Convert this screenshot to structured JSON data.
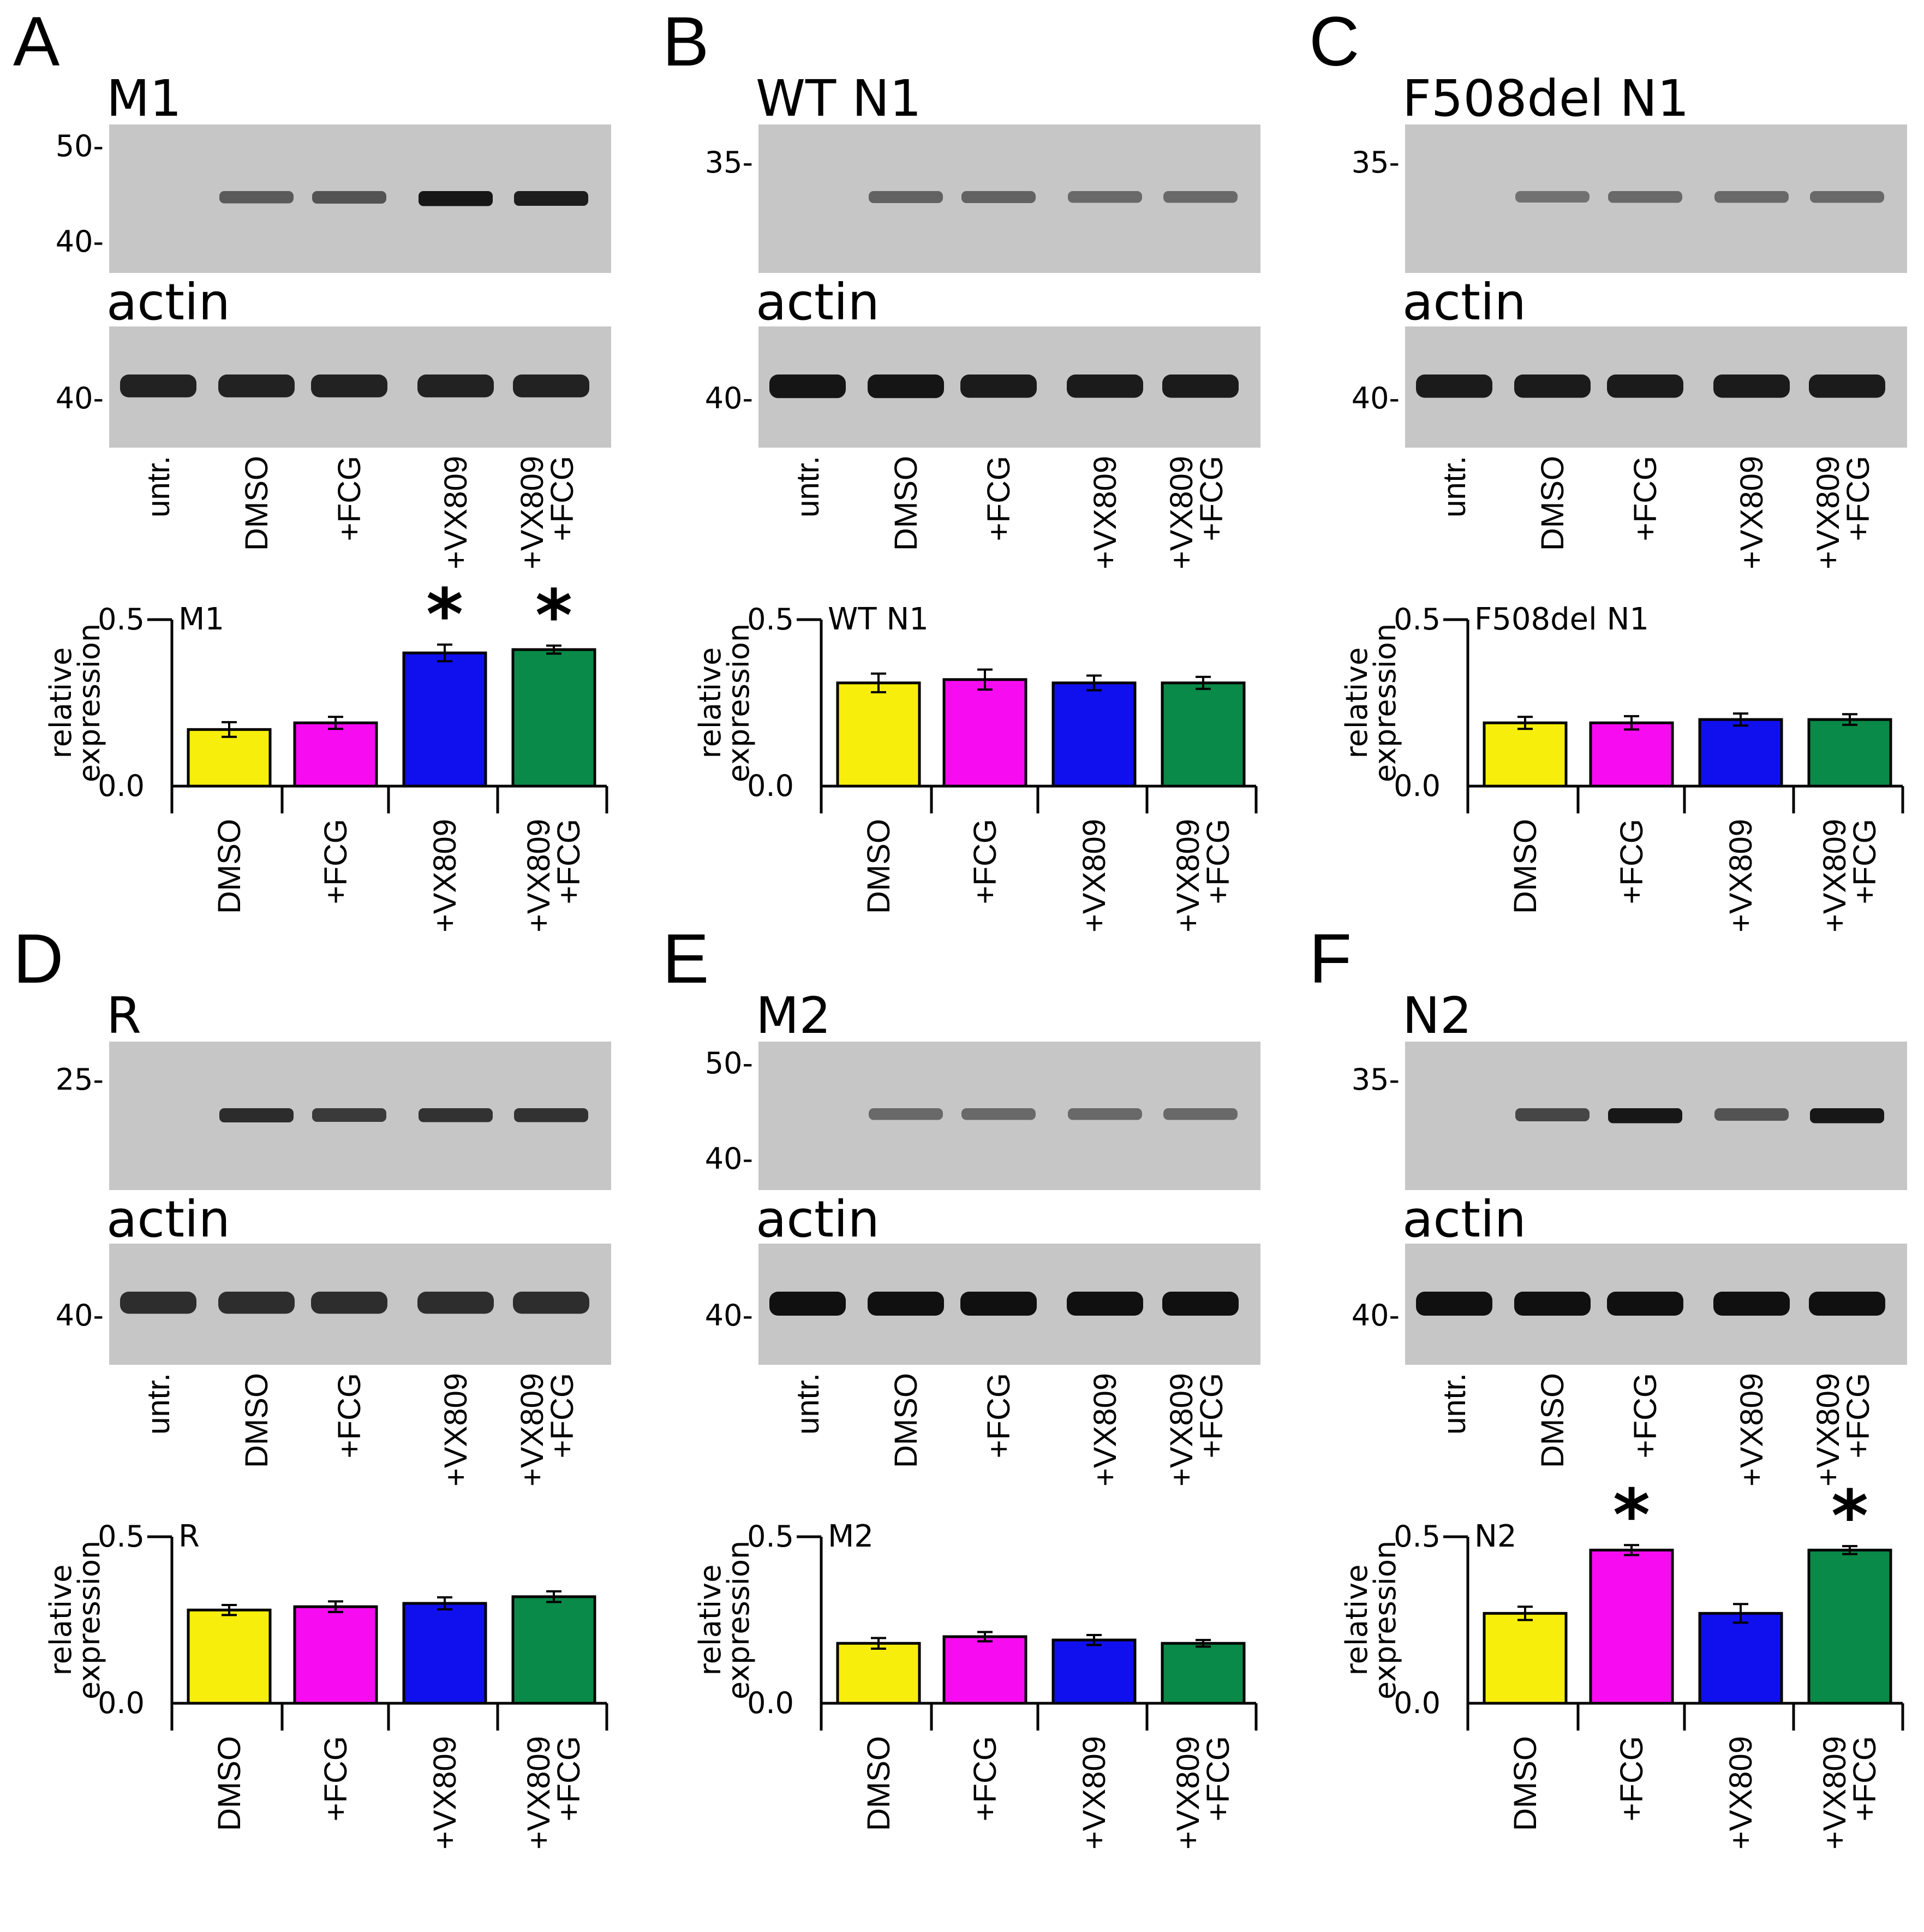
{
  "colors": {
    "DMSO": "#f7ee0c",
    "+FCG": "#f70cf1",
    "+VX809": "#1010ee",
    "+VX809 +FCG": "#0a8a48",
    "gel_bg": "#c6c6c6",
    "band": "#101010"
  },
  "lane_labels": [
    "untr.",
    "DMSO",
    "+FCG",
    "+VX809",
    [
      "+VX809",
      "+FCG"
    ]
  ],
  "chart_categories": [
    "DMSO",
    "+FCG",
    "+VX809",
    [
      "+VX809",
      "+FCG"
    ]
  ],
  "y_axis_label": [
    "relative",
    "expression"
  ],
  "blots": [
    {
      "letter": "A",
      "title": "M1",
      "title_actin": "actin",
      "mw_top": [
        "50-",
        "40-"
      ],
      "mw_actin": [
        "40-"
      ],
      "band_intensity": [
        0,
        0.45,
        0.5,
        0.95,
        0.9
      ],
      "actin_intensity": [
        0.85,
        0.85,
        0.85,
        0.85,
        0.85
      ]
    },
    {
      "letter": "B",
      "title": "WT N1",
      "title_actin": "actin",
      "mw_top": [
        "35-"
      ],
      "mw_actin": [
        "40-"
      ],
      "band_intensity": [
        0,
        0.4,
        0.4,
        0.35,
        0.35
      ],
      "actin_intensity": [
        0.95,
        0.95,
        0.9,
        0.9,
        0.9
      ]
    },
    {
      "letter": "C",
      "title": "F508del N1",
      "title_actin": "actin",
      "mw_top": [
        "35-"
      ],
      "mw_actin": [
        "40-"
      ],
      "band_intensity": [
        0,
        0.3,
        0.35,
        0.35,
        0.35
      ],
      "actin_intensity": [
        0.9,
        0.9,
        0.9,
        0.9,
        0.9
      ]
    },
    {
      "letter": "D",
      "title": "R",
      "title_actin": "actin",
      "mw_top": [
        "25-"
      ],
      "mw_actin": [
        "40-"
      ],
      "band_intensity": [
        0,
        0.8,
        0.7,
        0.75,
        0.75
      ],
      "actin_intensity": [
        0.75,
        0.75,
        0.75,
        0.75,
        0.75
      ]
    },
    {
      "letter": "E",
      "title": "M2",
      "title_actin": "actin",
      "mw_top": [
        "50-",
        "40-"
      ],
      "mw_actin": [
        "40-"
      ],
      "band_intensity": [
        0,
        0.35,
        0.35,
        0.35,
        0.35
      ],
      "actin_intensity": [
        1,
        1,
        1,
        1,
        1
      ]
    },
    {
      "letter": "F",
      "title": "N2",
      "title_actin": "actin",
      "mw_top": [
        "35-"
      ],
      "mw_actin": [
        "40-"
      ],
      "band_intensity": [
        0,
        0.6,
        0.95,
        0.5,
        0.95
      ],
      "actin_intensity": [
        1,
        1,
        1,
        1,
        1
      ]
    }
  ],
  "chart_data": [
    {
      "type": "bar",
      "panel": "A",
      "title": "M1",
      "categories": [
        "DMSO",
        "+FCG",
        "+VX809",
        "+VX809 +FCG"
      ],
      "values": [
        0.17,
        0.19,
        0.4,
        0.41
      ],
      "errors": [
        0.022,
        0.018,
        0.025,
        0.012
      ],
      "significant": [
        false,
        false,
        true,
        true
      ],
      "significance_marker": "*",
      "ylim": [
        0,
        0.5
      ],
      "yticks": [
        "0.5",
        "0.0"
      ],
      "ylabel": "relative expression"
    },
    {
      "type": "bar",
      "panel": "B",
      "title": "WT N1",
      "categories": [
        "DMSO",
        "+FCG",
        "+VX809",
        "+VX809 +FCG"
      ],
      "values": [
        0.31,
        0.32,
        0.31,
        0.31
      ],
      "errors": [
        0.028,
        0.03,
        0.022,
        0.018
      ],
      "significant": [
        false,
        false,
        false,
        false
      ],
      "significance_marker": "*",
      "ylim": [
        0,
        0.5
      ],
      "yticks": [
        "0.5",
        "0.0"
      ],
      "ylabel": "relative expression"
    },
    {
      "type": "bar",
      "panel": "C",
      "title": "F508del N1",
      "categories": [
        "DMSO",
        "+FCG",
        "+VX809",
        "+VX809 +FCG"
      ],
      "values": [
        0.19,
        0.19,
        0.2,
        0.2
      ],
      "errors": [
        0.018,
        0.02,
        0.018,
        0.016
      ],
      "significant": [
        false,
        false,
        false,
        false
      ],
      "significance_marker": "*",
      "ylim": [
        0,
        0.5
      ],
      "yticks": [
        "0.5",
        "0.0"
      ],
      "ylabel": "relative expression"
    },
    {
      "type": "bar",
      "panel": "D",
      "title": "R",
      "categories": [
        "DMSO",
        "+FCG",
        "+VX809",
        "+VX809 +FCG"
      ],
      "values": [
        0.28,
        0.29,
        0.3,
        0.32
      ],
      "errors": [
        0.015,
        0.016,
        0.018,
        0.016
      ],
      "significant": [
        false,
        false,
        false,
        false
      ],
      "significance_marker": "*",
      "ylim": [
        0,
        0.5
      ],
      "yticks": [
        "0.5",
        "0.0"
      ],
      "ylabel": "relative expression"
    },
    {
      "type": "bar",
      "panel": "E",
      "title": "M2",
      "categories": [
        "DMSO",
        "+FCG",
        "+VX809",
        "+VX809 +FCG"
      ],
      "values": [
        0.18,
        0.2,
        0.19,
        0.18
      ],
      "errors": [
        0.016,
        0.014,
        0.015,
        0.01
      ],
      "significant": [
        false,
        false,
        false,
        false
      ],
      "significance_marker": "*",
      "ylim": [
        0,
        0.5
      ],
      "yticks": [
        "0.5",
        "0.0"
      ],
      "ylabel": "relative expression"
    },
    {
      "type": "bar",
      "panel": "F",
      "title": "N2",
      "categories": [
        "DMSO",
        "+FCG",
        "+VX809",
        "+VX809 +FCG"
      ],
      "values": [
        0.27,
        0.46,
        0.27,
        0.46
      ],
      "errors": [
        0.02,
        0.015,
        0.028,
        0.012
      ],
      "significant": [
        false,
        true,
        false,
        true
      ],
      "significance_marker": "*",
      "ylim": [
        0,
        0.5
      ],
      "yticks": [
        "0.5",
        "0.0"
      ],
      "ylabel": "relative expression"
    }
  ]
}
